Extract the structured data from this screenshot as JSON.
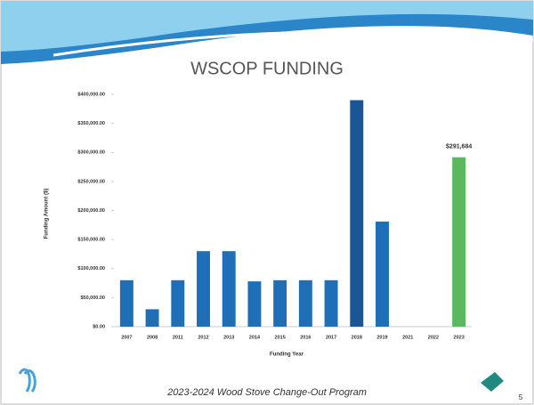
{
  "chart_data": {
    "type": "bar",
    "title": "WSCOP FUNDING",
    "x_label": "Funding Year",
    "y_label": "Funding Amount ($)",
    "categories": [
      "2007",
      "2008",
      "2011",
      "2012",
      "2013",
      "2014",
      "2015",
      "2016",
      "2017",
      "2018",
      "2019",
      "2021",
      "2022",
      "2023"
    ],
    "values": [
      80000,
      30000,
      80000,
      130000,
      130000,
      78000,
      80000,
      80000,
      80000,
      390000,
      181000,
      null,
      null,
      291684
    ],
    "value_labels": [
      null,
      null,
      null,
      null,
      null,
      null,
      null,
      null,
      null,
      null,
      null,
      null,
      null,
      "$291,684"
    ],
    "colors": [
      "#1f6fb8",
      "#1f6fb8",
      "#1f6fb8",
      "#1f6fb8",
      "#1f6fb8",
      "#1f6fb8",
      "#1f6fb8",
      "#1f6fb8",
      "#1f6fb8",
      "#1a5596",
      "#1f6fb8",
      "#1f6fb8",
      "#1f6fb8",
      "#5cb85c"
    ],
    "ylim": [
      0,
      400000
    ],
    "yticks": [
      {
        "value": 0,
        "label": "$0.00"
      },
      {
        "value": 50000,
        "label": "$50,000.00"
      },
      {
        "value": 100000,
        "label": "$100,000.00"
      },
      {
        "value": 150000,
        "label": "$150,000.00"
      },
      {
        "value": 200000,
        "label": "$200,000.00"
      },
      {
        "value": 250000,
        "label": "$250,000.00"
      },
      {
        "value": 300000,
        "label": "$300,000.00"
      },
      {
        "value": 350000,
        "label": "$350,000.00"
      },
      {
        "value": 400000,
        "label": "$400,000.00"
      }
    ],
    "grid": false
  },
  "footer": "2023-2024 Wood Stove Change-Out Program",
  "page_number": "5"
}
